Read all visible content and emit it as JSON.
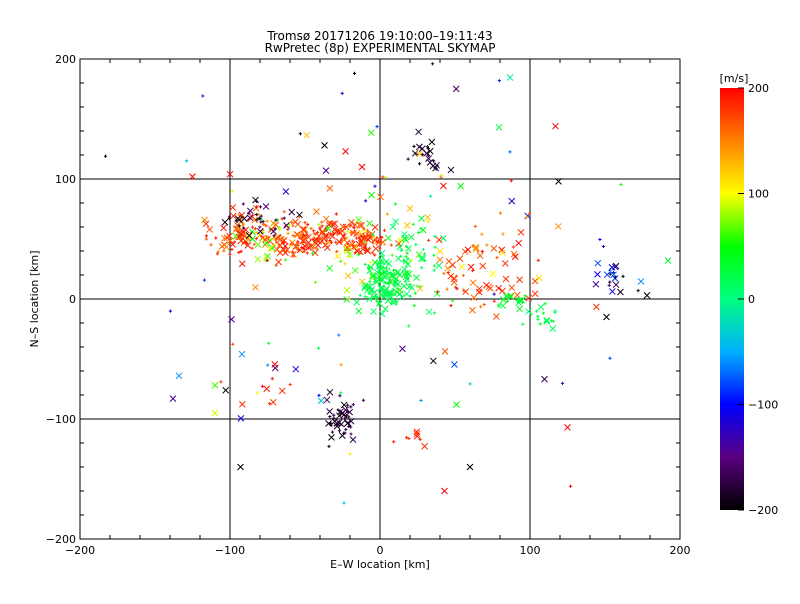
{
  "chart_data": {
    "type": "scatter",
    "title": "Tromsø 20171206 19:10:00–19:11:43",
    "subtitle": "RwPretec (8p) EXPERIMENTAL SKYMAP",
    "xlabel": "E–W location [km]",
    "ylabel": "N–S location [km]",
    "xlim": [
      -200,
      200
    ],
    "ylim": [
      -200,
      200
    ],
    "xticks": [
      "−200",
      "−100",
      "0",
      "100",
      "200"
    ],
    "yticks": [
      "−200",
      "−100",
      "0",
      "100",
      "200"
    ],
    "grid": "lines at x=-100,0,100 and y=-100,0,100",
    "colorbar": {
      "label": "[m/s]",
      "range": [
        -200,
        200
      ],
      "ticks": [
        "200",
        "100",
        "0",
        "−100",
        "−200"
      ],
      "colormap": [
        "#000000",
        "#5a0080",
        "#0000ff",
        "#00b0ff",
        "#00ff80",
        "#00ff00",
        "#ffff00",
        "#ff8000",
        "#ff0000"
      ]
    },
    "marker_types": [
      "plus",
      "cross"
    ],
    "clusters": [
      {
        "x": -95,
        "y": 55,
        "sx": 12,
        "sy": 9,
        "n": 70,
        "v": [
          140,
          200
        ]
      },
      {
        "x": -72,
        "y": 50,
        "sx": 10,
        "sy": 10,
        "n": 60,
        "v": [
          40,
          200
        ]
      },
      {
        "x": -52,
        "y": 50,
        "sx": 8,
        "sy": 8,
        "n": 70,
        "v": [
          150,
          200
        ]
      },
      {
        "x": -30,
        "y": 55,
        "sx": 12,
        "sy": 7,
        "n": 80,
        "v": [
          150,
          200
        ]
      },
      {
        "x": -10,
        "y": 48,
        "sx": 8,
        "sy": 6,
        "n": 50,
        "v": [
          170,
          200
        ]
      },
      {
        "x": -80,
        "y": 65,
        "sx": 12,
        "sy": 8,
        "n": 35,
        "v": [
          -200,
          -150
        ]
      },
      {
        "x": -15,
        "y": 40,
        "sx": 15,
        "sy": 15,
        "n": 40,
        "v": [
          40,
          130
        ]
      },
      {
        "x": 3,
        "y": 12,
        "sx": 8,
        "sy": 10,
        "n": 120,
        "v": [
          10,
          40
        ]
      },
      {
        "x": 20,
        "y": 30,
        "sx": 12,
        "sy": 18,
        "n": 70,
        "v": [
          0,
          60
        ]
      },
      {
        "x": 30,
        "y": 120,
        "sx": 6,
        "sy": 9,
        "n": 22,
        "v": [
          -200,
          -170
        ]
      },
      {
        "x": -27,
        "y": -100,
        "sx": 6,
        "sy": 9,
        "n": 50,
        "v": [
          -200,
          -160
        ]
      },
      {
        "x": 22,
        "y": -118,
        "sx": 5,
        "sy": 5,
        "n": 8,
        "v": [
          180,
          200
        ]
      },
      {
        "x": 72,
        "y": 5,
        "sx": 15,
        "sy": 10,
        "n": 30,
        "v": [
          150,
          200
        ]
      },
      {
        "x": 88,
        "y": 0,
        "sx": 6,
        "sy": 4,
        "n": 20,
        "v": [
          20,
          50
        ]
      },
      {
        "x": 60,
        "y": 30,
        "sx": 15,
        "sy": 12,
        "n": 30,
        "v": [
          150,
          200
        ]
      },
      {
        "x": 108,
        "y": -15,
        "sx": 7,
        "sy": 6,
        "n": 18,
        "v": [
          0,
          40
        ]
      },
      {
        "x": 155,
        "y": 25,
        "sx": 10,
        "sy": 8,
        "n": 15,
        "v": [
          -140,
          -60
        ]
      },
      {
        "x": 165,
        "y": 20,
        "sx": 10,
        "sy": 10,
        "n": 8,
        "v": [
          -200,
          -170
        ]
      },
      {
        "x": -70,
        "y": -70,
        "sx": 15,
        "sy": 10,
        "n": 10,
        "v": [
          170,
          200
        ]
      },
      {
        "x": 0,
        "y": 100,
        "sx": 60,
        "sy": 60,
        "n": 35,
        "v": [
          -200,
          200
        ]
      },
      {
        "x": 0,
        "y": -60,
        "sx": 90,
        "sy": 60,
        "n": 30,
        "v": [
          -200,
          200
        ]
      },
      {
        "x": 60,
        "y": 60,
        "sx": 40,
        "sy": 30,
        "n": 25,
        "v": [
          100,
          200
        ]
      }
    ],
    "extra_points": [
      {
        "x": -183,
        "y": 119,
        "v": -200,
        "m": "plus"
      },
      {
        "x": -125,
        "y": 102,
        "v": 200,
        "m": "cross"
      },
      {
        "x": -100,
        "y": 104,
        "v": 200,
        "m": "cross"
      },
      {
        "x": 117,
        "y": 144,
        "v": 200,
        "m": "cross"
      },
      {
        "x": 119,
        "y": 98,
        "v": -200,
        "m": "cross"
      },
      {
        "x": 192,
        "y": 32,
        "v": 30,
        "m": "cross"
      },
      {
        "x": 178,
        "y": 3,
        "v": -200,
        "m": "cross"
      },
      {
        "x": -134,
        "y": -64,
        "v": -60,
        "m": "cross"
      },
      {
        "x": -138,
        "y": -83,
        "v": -140,
        "m": "cross"
      },
      {
        "x": -110,
        "y": -95,
        "v": 90,
        "m": "cross"
      },
      {
        "x": -110,
        "y": -72,
        "v": 60,
        "m": "cross"
      },
      {
        "x": -92,
        "y": -46,
        "v": -60,
        "m": "cross"
      },
      {
        "x": -99,
        "y": -17,
        "v": -140,
        "m": "cross"
      },
      {
        "x": -93,
        "y": -140,
        "v": -200,
        "m": "cross"
      },
      {
        "x": 60,
        "y": -140,
        "v": -200,
        "m": "cross"
      },
      {
        "x": 43,
        "y": -160,
        "v": 200,
        "m": "cross"
      },
      {
        "x": 125,
        "y": -107,
        "v": 200,
        "m": "cross"
      },
      {
        "x": 127,
        "y": -156,
        "v": 200,
        "m": "plus"
      },
      {
        "x": -24,
        "y": -170,
        "v": -40,
        "m": "plus"
      },
      {
        "x": 51,
        "y": -88,
        "v": 50,
        "m": "cross"
      },
      {
        "x": -37,
        "y": 128,
        "v": -200,
        "m": "cross"
      },
      {
        "x": -23,
        "y": 123,
        "v": 200,
        "m": "cross"
      },
      {
        "x": -36,
        "y": 107,
        "v": -140,
        "m": "cross"
      },
      {
        "x": -12,
        "y": 110,
        "v": 200,
        "m": "cross"
      },
      {
        "x": -17,
        "y": 188,
        "v": -200,
        "m": "plus"
      },
      {
        "x": 151,
        "y": -15,
        "v": -200,
        "m": "cross"
      }
    ]
  }
}
